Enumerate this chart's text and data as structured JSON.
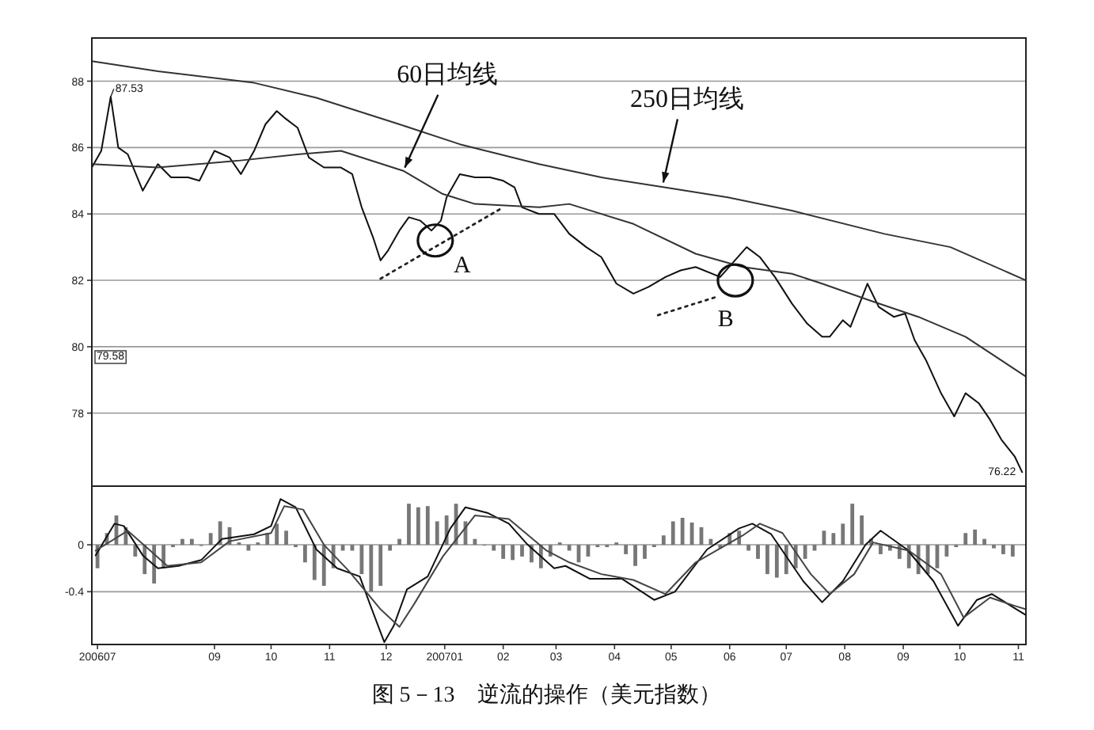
{
  "chart_data": [
    {
      "type": "line",
      "xlim": [
        "2006-06-28",
        "2007-11-05"
      ],
      "ylim": [
        75.8,
        89.3
      ],
      "yticks": [
        78,
        80,
        82,
        84,
        86,
        88
      ],
      "grid": "y",
      "tick_labels": "y",
      "series": [
        {
          "color": "#111111",
          "x": [
            "2006-06-28",
            "2006-07-03",
            "2006-07-08",
            "2006-07-12",
            "2006-07-17",
            "2006-07-25",
            "2006-08-02",
            "2006-08-09",
            "2006-08-18",
            "2006-08-24",
            "2006-09-01",
            "2006-09-09",
            "2006-09-15",
            "2006-09-22",
            "2006-09-28",
            "2006-10-04",
            "2006-10-08",
            "2006-10-15",
            "2006-10-21",
            "2006-10-29",
            "2006-11-07",
            "2006-11-13",
            "2006-11-18",
            "2006-11-24",
            "2006-11-28",
            "2006-12-02",
            "2006-12-08",
            "2006-12-13",
            "2006-12-19",
            "2006-12-25",
            "2006-12-30",
            "2007-01-02",
            "2007-01-09",
            "2007-01-17",
            "2007-01-25",
            "2007-02-01",
            "2007-02-07",
            "2007-02-11",
            "2007-02-20",
            "2007-02-28",
            "2007-03-08",
            "2007-03-17",
            "2007-03-25",
            "2007-04-02",
            "2007-04-11",
            "2007-04-19",
            "2007-04-28",
            "2007-05-06",
            "2007-05-14",
            "2007-05-27",
            "2007-06-10",
            "2007-06-17",
            "2007-06-25",
            "2007-07-04",
            "2007-07-12",
            "2007-07-20",
            "2007-07-24",
            "2007-07-31",
            "2007-08-04",
            "2007-08-13",
            "2007-08-19",
            "2007-08-27",
            "2007-09-02",
            "2007-09-07",
            "2007-09-13",
            "2007-09-21",
            "2007-09-28",
            "2007-10-04",
            "2007-10-11",
            "2007-10-17",
            "2007-10-23",
            "2007-10-30",
            "2007-11-03"
          ],
          "values": [
            85.4,
            85.9,
            87.53,
            86.0,
            85.8,
            84.7,
            85.5,
            85.1,
            85.1,
            85.0,
            85.9,
            85.7,
            85.2,
            85.9,
            86.7,
            87.1,
            86.9,
            86.6,
            85.7,
            85.4,
            85.4,
            85.2,
            84.2,
            83.3,
            82.6,
            82.9,
            83.5,
            83.9,
            83.8,
            83.5,
            83.8,
            84.5,
            85.2,
            85.1,
            85.1,
            85.0,
            84.8,
            84.2,
            84.0,
            84.0,
            83.4,
            83.0,
            82.7,
            81.9,
            81.6,
            81.8,
            82.1,
            82.3,
            82.4,
            82.1,
            83.0,
            82.7,
            82.1,
            81.3,
            80.7,
            80.3,
            80.3,
            80.8,
            80.6,
            81.9,
            81.2,
            80.9,
            81.0,
            80.2,
            79.6,
            78.6,
            77.9,
            78.6,
            78.3,
            77.8,
            77.2,
            76.7,
            76.22
          ]
        },
        {
          "color": "#333333",
          "x": [
            "2006-06-28",
            "2006-08-02",
            "2006-09-13",
            "2006-10-16",
            "2006-11-07",
            "2006-12-10",
            "2006-12-31",
            "2007-01-17",
            "2007-02-20",
            "2007-03-08",
            "2007-04-11",
            "2007-05-14",
            "2007-06-08",
            "2007-07-04",
            "2007-07-20",
            "2007-08-14",
            "2007-09-09",
            "2007-10-04",
            "2007-11-05"
          ],
          "values": [
            85.5,
            85.4,
            85.6,
            85.8,
            85.9,
            85.3,
            84.6,
            84.3,
            84.2,
            84.3,
            83.7,
            82.8,
            82.4,
            82.2,
            81.9,
            81.4,
            80.9,
            80.3,
            79.1
          ]
        },
        {
          "color": "#333333",
          "x": [
            "2006-06-28",
            "2006-08-02",
            "2006-09-22",
            "2006-10-25",
            "2006-12-08",
            "2007-01-09",
            "2007-02-20",
            "2007-03-25",
            "2007-04-28",
            "2007-05-31",
            "2007-07-04",
            "2007-08-22",
            "2007-09-26",
            "2007-11-05"
          ],
          "values": [
            88.6,
            88.3,
            87.95,
            87.5,
            86.7,
            86.1,
            85.5,
            85.1,
            84.8,
            84.5,
            84.1,
            83.4,
            83.0,
            82.0
          ]
        },
        {
          "color": "#222222",
          "line_style": "dotted",
          "x": [
            "2006-11-28",
            "2007-02-01"
          ],
          "values": [
            82.05,
            84.2
          ]
        },
        {
          "color": "#222222",
          "line_style": "dotted",
          "x": [
            "2007-04-24",
            "2007-05-25"
          ],
          "values": [
            80.95,
            81.5
          ]
        }
      ],
      "annotations": [
        {
          "text": "87.53",
          "x": "2006-07-08",
          "y": 87.53
        },
        "79.58",
        {
          "text": "76.22",
          "x": "2007-11-03",
          "y": 76.22
        },
        {
          "text": "60日均线",
          "x": "2006-12-10",
          "y": 85.3
        },
        {
          "text": "250日均线",
          "x": "2007-04-26",
          "y": 84.85
        },
        {
          "text": "A",
          "x": "2006-12-27",
          "y": 83.2
        },
        {
          "text": "B",
          "x": "2007-06-04",
          "y": 82.0
        },
        "图 5－13　逆流的操作（美元指数）"
      ]
    },
    {
      "type": "bar",
      "xlim": [
        "2006-06-28",
        "2007-11-05"
      ],
      "ylim": [
        -0.85,
        0.5
      ],
      "yticks": [
        0,
        -0.4
      ],
      "grid": "y",
      "xticks": [
        {
          "value": "2006-07-01",
          "label": "200607"
        },
        {
          "value": "2006-09-01",
          "label": "09"
        },
        {
          "value": "2006-10-01",
          "label": "10"
        },
        {
          "value": "2006-11-01",
          "label": "11"
        },
        {
          "value": "2006-12-01",
          "label": "12"
        },
        {
          "value": "2007-01-01",
          "label": "200701"
        },
        {
          "value": "2007-02-01",
          "label": "02"
        },
        {
          "value": "2007-03-01",
          "label": "03"
        },
        {
          "value": "2007-04-01",
          "label": "04"
        },
        {
          "value": "2007-05-01",
          "label": "05"
        },
        {
          "value": "2007-06-01",
          "label": "06"
        },
        {
          "value": "2007-07-01",
          "label": "07"
        },
        {
          "value": "2007-08-01",
          "label": "08"
        },
        {
          "value": "2007-09-01",
          "label": "09"
        },
        {
          "value": "2007-10-01",
          "label": "10"
        },
        {
          "value": "2007-11-01",
          "label": "11"
        }
      ],
      "series": [
        {
          "color": "#777777",
          "x": [
            "2006-07-01",
            "2006-07-06",
            "2006-07-11",
            "2006-07-16",
            "2006-07-21",
            "2006-07-26",
            "2006-07-31",
            "2006-08-05",
            "2006-08-10",
            "2006-08-15",
            "2006-08-20",
            "2006-08-25",
            "2006-08-30",
            "2006-09-04",
            "2006-09-09",
            "2006-09-14",
            "2006-09-19",
            "2006-09-24",
            "2006-09-29",
            "2006-10-04",
            "2006-10-09",
            "2006-10-14",
            "2006-10-19",
            "2006-10-24",
            "2006-10-29",
            "2006-11-03",
            "2006-11-08",
            "2006-11-13",
            "2006-11-18",
            "2006-11-23",
            "2006-11-28",
            "2006-12-03",
            "2006-12-08",
            "2006-12-13",
            "2006-12-18",
            "2006-12-23",
            "2006-12-28",
            "2007-01-02",
            "2007-01-07",
            "2007-01-12",
            "2007-01-17",
            "2007-01-22",
            "2007-01-27",
            "2007-02-01",
            "2007-02-06",
            "2007-02-11",
            "2007-02-16",
            "2007-02-21",
            "2007-02-26",
            "2007-03-03",
            "2007-03-08",
            "2007-03-13",
            "2007-03-18",
            "2007-03-23",
            "2007-03-28",
            "2007-04-02",
            "2007-04-07",
            "2007-04-12",
            "2007-04-17",
            "2007-04-22",
            "2007-04-27",
            "2007-05-02",
            "2007-05-07",
            "2007-05-12",
            "2007-05-17",
            "2007-05-22",
            "2007-05-27",
            "2007-06-01",
            "2007-06-06",
            "2007-06-11",
            "2007-06-16",
            "2007-06-21",
            "2007-06-26",
            "2007-07-01",
            "2007-07-06",
            "2007-07-11",
            "2007-07-16",
            "2007-07-21",
            "2007-07-26",
            "2007-07-31",
            "2007-08-05",
            "2007-08-10",
            "2007-08-15",
            "2007-08-20",
            "2007-08-25",
            "2007-08-30",
            "2007-09-04",
            "2007-09-09",
            "2007-09-14",
            "2007-09-19",
            "2007-09-24",
            "2007-09-29",
            "2007-10-04",
            "2007-10-09",
            "2007-10-14",
            "2007-10-19",
            "2007-10-24",
            "2007-10-29"
          ],
          "values": [
            -0.2,
            0.1,
            0.25,
            0.15,
            -0.1,
            -0.25,
            -0.33,
            -0.2,
            -0.02,
            0.05,
            0.05,
            -0.01,
            0.1,
            0.2,
            0.15,
            0.02,
            -0.05,
            0.02,
            0.1,
            0.18,
            0.12,
            -0.02,
            -0.15,
            -0.3,
            -0.35,
            -0.2,
            -0.05,
            -0.05,
            -0.25,
            -0.4,
            -0.35,
            -0.05,
            0.05,
            0.35,
            0.32,
            0.33,
            0.2,
            0.25,
            0.35,
            0.2,
            0.05,
            0.0,
            -0.05,
            -0.12,
            -0.13,
            -0.1,
            -0.15,
            -0.2,
            -0.1,
            0.02,
            -0.05,
            -0.15,
            -0.1,
            -0.02,
            -0.02,
            0.02,
            -0.08,
            -0.18,
            -0.12,
            -0.02,
            0.08,
            0.2,
            0.23,
            0.19,
            0.15,
            0.05,
            -0.03,
            0.1,
            0.12,
            -0.05,
            -0.12,
            -0.25,
            -0.28,
            -0.25,
            -0.2,
            -0.12,
            -0.05,
            0.12,
            0.1,
            0.18,
            0.35,
            0.25,
            0.05,
            -0.08,
            -0.05,
            -0.12,
            -0.2,
            -0.25,
            -0.25,
            -0.2,
            -0.1,
            -0.02,
            0.1,
            0.13,
            0.05,
            -0.03,
            -0.08,
            -0.1
          ]
        },
        {
          "type": "line",
          "color": "#111111",
          "x": [
            "2006-06-30",
            "2006-07-10",
            "2006-07-15",
            "2006-07-25",
            "2006-08-02",
            "2006-08-13",
            "2006-08-25",
            "2006-09-05",
            "2006-09-22",
            "2006-10-01",
            "2006-10-06",
            "2006-10-14",
            "2006-10-25",
            "2006-11-05",
            "2006-11-17",
            "2006-11-22",
            "2006-11-30",
            "2006-12-05",
            "2006-12-12",
            "2006-12-23",
            "2007-01-04",
            "2007-01-12",
            "2007-01-24",
            "2007-02-04",
            "2007-02-14",
            "2007-02-28",
            "2007-03-06",
            "2007-03-19",
            "2007-04-05",
            "2007-04-22",
            "2007-05-03",
            "2007-05-20",
            "2007-06-06",
            "2007-06-13",
            "2007-06-23",
            "2007-07-10",
            "2007-07-20",
            "2007-07-31",
            "2007-08-12",
            "2007-08-20",
            "2007-09-03",
            "2007-09-17",
            "2007-09-30",
            "2007-10-10",
            "2007-10-18",
            "2007-10-30",
            "2007-11-05"
          ],
          "values": [
            -0.09,
            0.18,
            0.16,
            -0.09,
            -0.2,
            -0.18,
            -0.13,
            0.05,
            0.09,
            0.16,
            0.39,
            0.32,
            -0.04,
            -0.2,
            -0.27,
            -0.49,
            -0.83,
            -0.69,
            -0.38,
            -0.27,
            0.14,
            0.32,
            0.27,
            0.18,
            0.0,
            -0.2,
            -0.18,
            -0.29,
            -0.29,
            -0.47,
            -0.4,
            -0.04,
            0.14,
            0.18,
            0.09,
            -0.31,
            -0.49,
            -0.31,
            0.0,
            0.12,
            -0.04,
            -0.31,
            -0.69,
            -0.47,
            -0.42,
            -0.54,
            -0.6
          ]
        },
        {
          "type": "line",
          "color": "#444444",
          "x": [
            "2006-06-30",
            "2006-07-17",
            "2006-07-29",
            "2006-08-07",
            "2006-08-25",
            "2006-09-09",
            "2006-10-01",
            "2006-10-08",
            "2006-10-18",
            "2006-10-29",
            "2006-11-11",
            "2006-11-28",
            "2006-12-08",
            "2006-12-16",
            "2006-12-31",
            "2007-01-17",
            "2007-02-04",
            "2007-02-24",
            "2007-03-08",
            "2007-03-25",
            "2007-04-11",
            "2007-04-28",
            "2007-05-14",
            "2007-06-08",
            "2007-06-17",
            "2007-06-29",
            "2007-07-14",
            "2007-07-24",
            "2007-08-06",
            "2007-08-16",
            "2007-09-04",
            "2007-09-21",
            "2007-10-03",
            "2007-10-17",
            "2007-10-30",
            "2007-11-05"
          ],
          "values": [
            -0.05,
            0.12,
            -0.05,
            -0.18,
            -0.15,
            0.03,
            0.1,
            0.33,
            0.3,
            0.0,
            -0.22,
            -0.55,
            -0.7,
            -0.5,
            -0.1,
            0.25,
            0.22,
            -0.05,
            -0.15,
            -0.25,
            -0.3,
            -0.42,
            -0.15,
            0.08,
            0.18,
            0.1,
            -0.25,
            -0.42,
            -0.25,
            0.02,
            -0.05,
            -0.25,
            -0.62,
            -0.45,
            -0.52,
            -0.55
          ]
        }
      ]
    }
  ]
}
